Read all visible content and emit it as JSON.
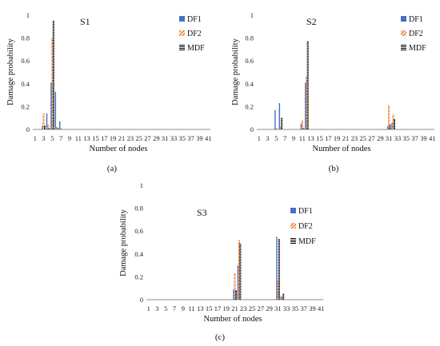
{
  "chart_data": [
    {
      "id": "a",
      "type": "bar",
      "title": "S1",
      "caption": "(a)",
      "xlabel": "Number of nodes",
      "ylabel": "Damage probability",
      "ylim": [
        0,
        1
      ],
      "yticks": [
        "0",
        "0.2",
        "0.4",
        "0.6",
        "0.8",
        "1"
      ],
      "x_tick_labels": [
        "1",
        "3",
        "5",
        "7",
        "9",
        "11",
        "13",
        "15",
        "17",
        "19",
        "21",
        "23",
        "25",
        "27",
        "29",
        "31",
        "33",
        "35",
        "37",
        "39",
        "41"
      ],
      "legend_position": "top-right",
      "categories": [
        "1",
        "2",
        "3",
        "4",
        "5",
        "6",
        "7",
        "8",
        "9",
        "10",
        "11",
        "12",
        "13",
        "14",
        "15",
        "16",
        "17",
        "18",
        "19",
        "20",
        "21",
        "22",
        "23",
        "24",
        "25",
        "26",
        "27",
        "28",
        "29",
        "30",
        "31",
        "32",
        "33",
        "34",
        "35",
        "36",
        "37",
        "38",
        "39",
        "40",
        "41"
      ],
      "series": [
        {
          "name": "DF1",
          "color": "#4472C4",
          "pattern": "solid",
          "values": [
            0,
            0,
            0.03,
            0.14,
            0.41,
            0.33,
            0.07,
            0,
            0,
            0,
            0,
            0,
            0,
            0,
            0,
            0,
            0,
            0,
            0,
            0,
            0,
            0,
            0,
            0,
            0,
            0,
            0,
            0,
            0,
            0,
            0,
            0,
            0,
            0,
            0,
            0,
            0,
            0,
            0,
            0,
            0
          ]
        },
        {
          "name": "DF2",
          "color": "#ED7D31",
          "pattern": "diagonal",
          "values": [
            0,
            0,
            0.14,
            0.04,
            0.8,
            0.02,
            0.01,
            0,
            0,
            0,
            0,
            0,
            0,
            0,
            0,
            0,
            0,
            0,
            0,
            0,
            0,
            0,
            0,
            0,
            0,
            0,
            0,
            0,
            0,
            0,
            0,
            0,
            0,
            0,
            0,
            0,
            0,
            0,
            0,
            0,
            0
          ]
        },
        {
          "name": "MDF",
          "color": "#000000",
          "pattern": "checker",
          "values": [
            0,
            0,
            0.03,
            0.01,
            0.95,
            0.01,
            0,
            0,
            0,
            0,
            0,
            0,
            0,
            0,
            0,
            0,
            0,
            0,
            0,
            0,
            0,
            0,
            0,
            0,
            0,
            0,
            0,
            0,
            0,
            0,
            0,
            0,
            0,
            0,
            0,
            0,
            0,
            0,
            0,
            0,
            0
          ]
        }
      ]
    },
    {
      "id": "b",
      "type": "bar",
      "title": "S2",
      "caption": "(b)",
      "xlabel": "Number of nodes",
      "ylabel": "Damage probability",
      "ylim": [
        0,
        1
      ],
      "yticks": [
        "0",
        "0.2",
        "0.4",
        "0.6",
        "0.8",
        "1"
      ],
      "x_tick_labels": [
        "1",
        "3",
        "5",
        "7",
        "9",
        "11",
        "13",
        "15",
        "17",
        "19",
        "21",
        "23",
        "25",
        "27",
        "29",
        "31",
        "33",
        "35",
        "37",
        "39",
        "41"
      ],
      "legend_position": "top-right",
      "categories": [
        "1",
        "2",
        "3",
        "4",
        "5",
        "6",
        "7",
        "8",
        "9",
        "10",
        "11",
        "12",
        "13",
        "14",
        "15",
        "16",
        "17",
        "18",
        "19",
        "20",
        "21",
        "22",
        "23",
        "24",
        "25",
        "26",
        "27",
        "28",
        "29",
        "30",
        "31",
        "32",
        "33",
        "34",
        "35",
        "36",
        "37",
        "38",
        "39",
        "40",
        "41"
      ],
      "series": [
        {
          "name": "DF1",
          "color": "#4472C4",
          "pattern": "solid",
          "values": [
            0,
            0,
            0,
            0,
            0.17,
            0.23,
            0,
            0,
            0,
            0,
            0.05,
            0.41,
            0,
            0,
            0,
            0,
            0,
            0,
            0,
            0,
            0,
            0,
            0,
            0,
            0,
            0,
            0,
            0,
            0,
            0,
            0.03,
            0.06,
            0,
            0,
            0,
            0,
            0,
            0,
            0,
            0,
            0
          ]
        },
        {
          "name": "DF2",
          "color": "#ED7D31",
          "pattern": "diagonal",
          "values": [
            0,
            0,
            0,
            0,
            0.01,
            0.02,
            0,
            0,
            0,
            0,
            0.08,
            0.46,
            0,
            0,
            0,
            0,
            0,
            0,
            0,
            0,
            0,
            0,
            0,
            0,
            0,
            0,
            0,
            0,
            0,
            0,
            0.21,
            0.13,
            0,
            0,
            0,
            0,
            0,
            0,
            0,
            0,
            0
          ]
        },
        {
          "name": "MDF",
          "color": "#000000",
          "pattern": "checker",
          "values": [
            0,
            0,
            0,
            0,
            0,
            0.1,
            0,
            0,
            0,
            0,
            0.01,
            0.77,
            0,
            0,
            0,
            0,
            0,
            0,
            0,
            0,
            0,
            0,
            0,
            0,
            0,
            0,
            0,
            0,
            0,
            0,
            0.04,
            0.09,
            0,
            0,
            0,
            0,
            0,
            0,
            0,
            0,
            0
          ]
        }
      ]
    },
    {
      "id": "c",
      "type": "bar",
      "title": "S3",
      "caption": "(c)",
      "xlabel": "Number of nodes",
      "ylabel": "Damage probability",
      "ylim": [
        0,
        1
      ],
      "yticks": [
        "0",
        "0.2",
        "0.4",
        "0.6",
        "0.8",
        "1"
      ],
      "x_tick_labels": [
        "1",
        "3",
        "5",
        "7",
        "9",
        "11",
        "13",
        "15",
        "17",
        "19",
        "21",
        "23",
        "25",
        "27",
        "29",
        "31",
        "33",
        "35",
        "37",
        "39",
        "41"
      ],
      "legend_position": "top-right",
      "categories": [
        "1",
        "2",
        "3",
        "4",
        "5",
        "6",
        "7",
        "8",
        "9",
        "10",
        "11",
        "12",
        "13",
        "14",
        "15",
        "16",
        "17",
        "18",
        "19",
        "20",
        "21",
        "22",
        "23",
        "24",
        "25",
        "26",
        "27",
        "28",
        "29",
        "30",
        "31",
        "32",
        "33",
        "34",
        "35",
        "36",
        "37",
        "38",
        "39",
        "40",
        "41"
      ],
      "series": [
        {
          "name": "DF1",
          "color": "#4472C4",
          "pattern": "solid",
          "values": [
            0,
            0,
            0,
            0,
            0,
            0,
            0,
            0,
            0,
            0,
            0,
            0,
            0,
            0,
            0,
            0,
            0,
            0,
            0,
            0,
            0.09,
            0.3,
            0,
            0,
            0,
            0,
            0,
            0,
            0,
            0,
            0.55,
            0.03,
            0,
            0,
            0,
            0,
            0,
            0,
            0,
            0,
            0
          ]
        },
        {
          "name": "DF2",
          "color": "#ED7D31",
          "pattern": "diagonal",
          "values": [
            0,
            0,
            0,
            0,
            0,
            0,
            0,
            0,
            0,
            0,
            0,
            0,
            0,
            0,
            0,
            0,
            0,
            0,
            0,
            0,
            0.23,
            0.52,
            0,
            0,
            0,
            0,
            0,
            0,
            0,
            0,
            0.16,
            0.02,
            0,
            0,
            0,
            0,
            0,
            0,
            0,
            0,
            0
          ]
        },
        {
          "name": "MDF",
          "color": "#000000",
          "pattern": "checker",
          "values": [
            0,
            0,
            0,
            0,
            0,
            0,
            0,
            0,
            0,
            0,
            0,
            0,
            0,
            0,
            0,
            0,
            0,
            0,
            0,
            0,
            0.08,
            0.49,
            0,
            0,
            0,
            0,
            0,
            0,
            0,
            0,
            0.53,
            0.05,
            0,
            0,
            0,
            0,
            0,
            0,
            0,
            0,
            0
          ]
        }
      ]
    }
  ]
}
